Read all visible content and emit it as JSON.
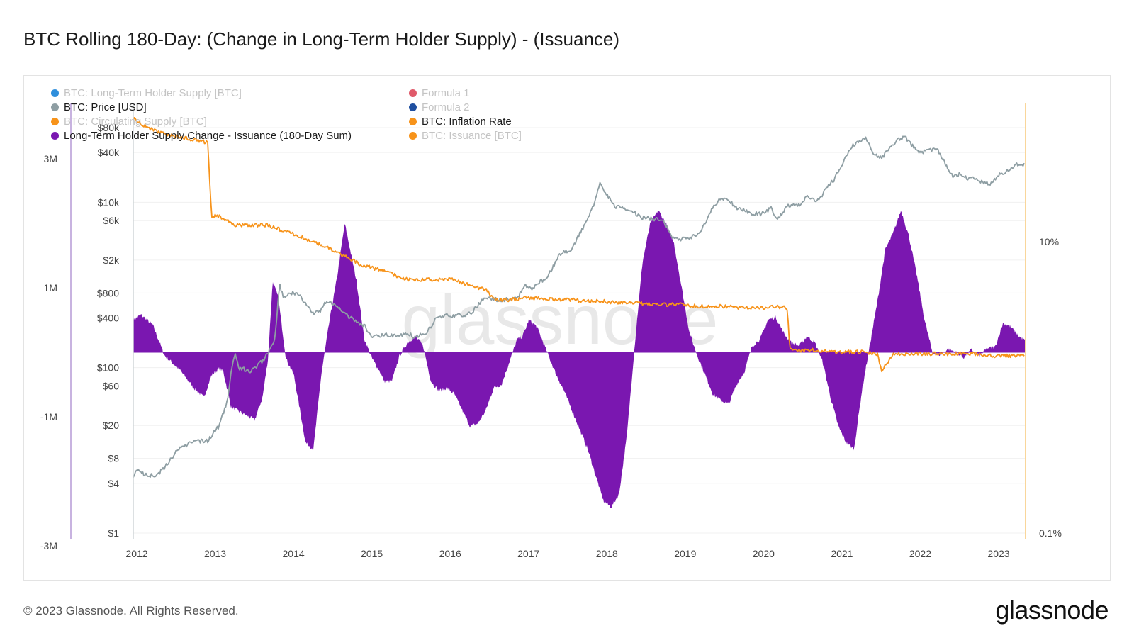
{
  "title": "BTC Rolling 180-Day: (Change in Long-Term Holder Supply) - (Issuance)",
  "footer": "© 2023 Glassnode. All Rights Reserved.",
  "brand": "glassnode",
  "watermark": "glassnode",
  "colors": {
    "lth_change": "#7a17b0",
    "price": "#8e9ea3",
    "inflation": "#f7931a",
    "axis_left_line": "#b59ad6",
    "axis_right_line": "#f7c97a"
  },
  "legend": [
    {
      "label": "BTC: Long-Term Holder Supply [BTC]",
      "color": "#2f8fdc",
      "active": false
    },
    {
      "label": "Formula 1",
      "color": "#e05a6a",
      "active": false
    },
    {
      "label": "BTC: Price [USD]",
      "color": "#8e9ea3",
      "active": true
    },
    {
      "label": "Formula 2",
      "color": "#1f4fa0",
      "active": false
    },
    {
      "label": "BTC: Circulating Supply [BTC]",
      "color": "#f7931a",
      "active": false
    },
    {
      "label": "BTC: Inflation Rate",
      "color": "#f7931a",
      "active": true
    },
    {
      "label": "Long-Term Holder Supply Change - Issuance (180-Day Sum)",
      "color": "#7a17b0",
      "active": true
    },
    {
      "label": "BTC: Issuance [BTC]",
      "color": "#f7931a",
      "active": false
    }
  ],
  "chart_data": {
    "type": "area",
    "x_ticks": [
      "2012",
      "2013",
      "2014",
      "2015",
      "2016",
      "2017",
      "2018",
      "2019",
      "2020",
      "2021",
      "2022",
      "2023"
    ],
    "left_axis": {
      "ticks": [
        "3M",
        "1M",
        "-1M",
        "-3M"
      ],
      "values": [
        3000000,
        1000000,
        -1000000,
        -3000000
      ]
    },
    "price_axis": {
      "scale": "log",
      "ticks": [
        "$80k",
        "$40k",
        "$10k",
        "$6k",
        "$2k",
        "$800",
        "$400",
        "$100",
        "$60",
        "$20",
        "$8",
        "$4",
        "$1"
      ],
      "values": [
        80000,
        40000,
        10000,
        6000,
        2000,
        800,
        400,
        100,
        60,
        20,
        8,
        4,
        1
      ]
    },
    "right_axis": {
      "scale": "log",
      "ticks": [
        "10%",
        "0.1%"
      ],
      "values": [
        10,
        0.1
      ]
    },
    "series": [
      {
        "name": "Long-Term Holder Supply Change - Issuance (180-Day Sum)",
        "axis": "left",
        "x": [
          2012.0,
          2012.1,
          2012.25,
          2012.4,
          2012.6,
          2012.75,
          2012.9,
          2013.0,
          2013.1,
          2013.15,
          2013.25,
          2013.4,
          2013.55,
          2013.65,
          2013.72,
          2013.78,
          2013.85,
          2013.95,
          2014.05,
          2014.2,
          2014.3,
          2014.4,
          2014.5,
          2014.6,
          2014.7,
          2014.85,
          2014.95,
          2015.05,
          2015.15,
          2015.2,
          2015.3,
          2015.4,
          2015.5,
          2015.6,
          2015.7,
          2015.8,
          2015.9,
          2016.0,
          2016.1,
          2016.2,
          2016.3,
          2016.4,
          2016.5,
          2016.6,
          2016.7,
          2016.8,
          2016.9,
          2016.97,
          2017.05,
          2017.15,
          2017.25,
          2017.4,
          2017.5,
          2017.6,
          2017.7,
          2017.8,
          2017.9,
          2018.0,
          2018.1,
          2018.2,
          2018.3,
          2018.4,
          2018.5,
          2018.6,
          2018.7,
          2018.8,
          2018.9,
          2019.0,
          2019.1,
          2019.2,
          2019.3,
          2019.4,
          2019.5,
          2019.6,
          2019.7,
          2019.8,
          2019.9,
          2020.0,
          2020.1,
          2020.2,
          2020.3,
          2020.4,
          2020.5,
          2020.6,
          2020.7,
          2020.8,
          2020.9,
          2021.0,
          2021.1,
          2021.2,
          2021.3,
          2021.4,
          2021.5,
          2021.6,
          2021.7,
          2021.8,
          2021.9,
          2022.0,
          2022.1,
          2022.2,
          2022.3,
          2022.4,
          2022.5,
          2022.6,
          2022.7,
          2022.8,
          2022.9,
          2023.0,
          2023.1,
          2023.2,
          2023.3,
          2023.38
        ],
        "y": [
          500000,
          580000,
          420000,
          -50000,
          -280000,
          -520000,
          -700000,
          -350000,
          -250000,
          -300000,
          -850000,
          -950000,
          -1050000,
          -700000,
          -100000,
          1100000,
          850000,
          -100000,
          -350000,
          -1400000,
          -1500000,
          -350000,
          450000,
          1150000,
          2000000,
          1100000,
          200000,
          -100000,
          -300000,
          -450000,
          -450000,
          -50000,
          150000,
          250000,
          100000,
          -450000,
          -600000,
          -550000,
          -650000,
          -900000,
          -1150000,
          -1100000,
          -900000,
          -550000,
          -500000,
          -150000,
          200000,
          250000,
          500000,
          400000,
          100000,
          -350000,
          -600000,
          -900000,
          -1200000,
          -1500000,
          -1900000,
          -2300000,
          -2400000,
          -2200000,
          -1300000,
          100000,
          1400000,
          2000000,
          2200000,
          2000000,
          1700000,
          1000000,
          300000,
          -50000,
          -350000,
          -650000,
          -750000,
          -800000,
          -500000,
          -300000,
          100000,
          200000,
          500000,
          550000,
          300000,
          150000,
          100000,
          250000,
          150000,
          -150000,
          -700000,
          -1150000,
          -1400000,
          -1500000,
          -600000,
          100000,
          800000,
          1600000,
          1850000,
          2200000,
          1800000,
          1200000,
          500000,
          0,
          -40000,
          50000,
          0,
          -80000,
          40000,
          -50000,
          60000,
          80000,
          450000,
          400000,
          250000,
          180000
        ]
      },
      {
        "name": "BTC: Price [USD]",
        "axis": "price",
        "x": [
          2012.0,
          2012.05,
          2012.15,
          2012.3,
          2012.45,
          2012.55,
          2012.7,
          2012.85,
          2012.95,
          2013.1,
          2013.2,
          2013.25,
          2013.3,
          2013.35,
          2013.5,
          2013.65,
          2013.8,
          2013.87,
          2013.92,
          2013.98,
          2014.1,
          2014.2,
          2014.3,
          2014.4,
          2014.45,
          2014.55,
          2014.7,
          2014.85,
          2014.95,
          2015.05,
          2015.2,
          2015.4,
          2015.5,
          2015.6,
          2015.75,
          2015.85,
          2015.95,
          2016.1,
          2016.3,
          2016.45,
          2016.55,
          2016.7,
          2016.9,
          2017.0,
          2017.1,
          2017.2,
          2017.3,
          2017.45,
          2017.6,
          2017.7,
          2017.8,
          2017.9,
          2017.96,
          2018.05,
          2018.15,
          2018.3,
          2018.4,
          2018.5,
          2018.6,
          2018.75,
          2018.88,
          2018.96,
          2019.05,
          2019.2,
          2019.3,
          2019.4,
          2019.5,
          2019.6,
          2019.7,
          2019.8,
          2019.9,
          2020.0,
          2020.15,
          2020.22,
          2020.35,
          2020.5,
          2020.6,
          2020.75,
          2020.85,
          2020.95,
          2021.05,
          2021.15,
          2021.25,
          2021.35,
          2021.45,
          2021.55,
          2021.65,
          2021.75,
          2021.85,
          2021.95,
          2022.05,
          2022.15,
          2022.25,
          2022.35,
          2022.45,
          2022.55,
          2022.65,
          2022.75,
          2022.85,
          2022.95,
          2023.05,
          2023.15,
          2023.25,
          2023.35
        ],
        "y": [
          5,
          6,
          5,
          5,
          7,
          10,
          12,
          13,
          13,
          20,
          40,
          90,
          150,
          100,
          90,
          120,
          200,
          1000,
          700,
          800,
          800,
          600,
          450,
          500,
          600,
          600,
          450,
          350,
          320,
          240,
          250,
          240,
          260,
          230,
          270,
          380,
          430,
          420,
          450,
          650,
          700,
          650,
          700,
          1000,
          900,
          1100,
          1300,
          2400,
          2700,
          4300,
          6000,
          11000,
          17000,
          12000,
          9000,
          8000,
          7500,
          6500,
          6300,
          6200,
          3800,
          3600,
          3600,
          4000,
          5500,
          9000,
          11000,
          10500,
          8500,
          8000,
          7300,
          7200,
          8500,
          6000,
          9000,
          9200,
          11500,
          10500,
          15000,
          19000,
          29000,
          45000,
          55000,
          58000,
          38000,
          34000,
          44000,
          57000,
          61000,
          48000,
          40000,
          42000,
          45000,
          31000,
          21000,
          22000,
          19500,
          19800,
          17000,
          16800,
          22000,
          23500,
          28000,
          29000
        ]
      },
      {
        "name": "BTC: Inflation Rate",
        "axis": "right",
        "x": [
          2012.0,
          2012.2,
          2012.4,
          2012.6,
          2012.8,
          2012.95,
          2013.0,
          2013.1,
          2013.3,
          2013.5,
          2013.7,
          2013.9,
          2014.1,
          2014.3,
          2014.5,
          2014.7,
          2014.9,
          2015.1,
          2015.3,
          2015.5,
          2015.7,
          2015.9,
          2016.1,
          2016.3,
          2016.5,
          2016.53,
          2016.6,
          2016.8,
          2017.0,
          2017.2,
          2017.4,
          2017.6,
          2017.8,
          2018.0,
          2018.2,
          2018.4,
          2018.6,
          2018.8,
          2019.0,
          2019.2,
          2019.4,
          2019.6,
          2019.8,
          2020.0,
          2020.2,
          2020.35,
          2020.38,
          2020.5,
          2020.7,
          2020.9,
          2021.1,
          2021.3,
          2021.5,
          2021.55,
          2021.7,
          2021.9,
          2022.1,
          2022.3,
          2022.5,
          2022.7,
          2022.9,
          2023.1,
          2023.38
        ],
        "y": [
          70,
          60,
          55,
          52,
          50,
          48,
          15,
          15,
          13,
          13,
          13,
          12,
          11,
          10,
          9,
          8,
          7,
          6.5,
          6,
          5.5,
          5.5,
          5.5,
          5.5,
          5,
          4.7,
          4.5,
          4,
          4,
          4.1,
          4.1,
          4,
          4,
          3.9,
          3.9,
          3.8,
          3.8,
          3.7,
          3.7,
          3.7,
          3.6,
          3.6,
          3.6,
          3.5,
          3.5,
          3.6,
          3.5,
          1.8,
          1.8,
          1.8,
          1.75,
          1.75,
          1.75,
          1.7,
          1.3,
          1.7,
          1.7,
          1.7,
          1.7,
          1.7,
          1.7,
          1.65,
          1.65,
          1.65
        ]
      }
    ]
  }
}
